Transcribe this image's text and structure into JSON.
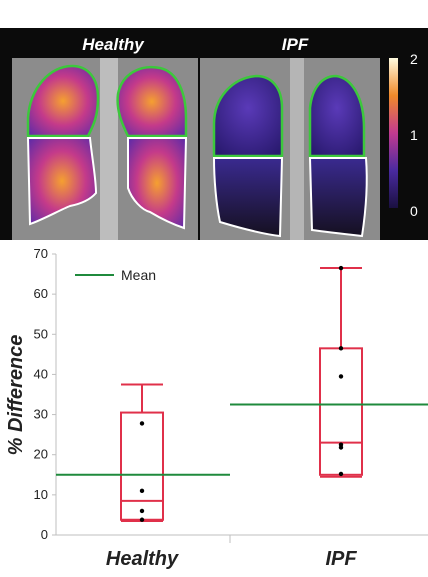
{
  "imaging": {
    "panels": [
      {
        "title": "Healthy"
      },
      {
        "title": "IPF"
      }
    ],
    "colorbar": {
      "ticks": [
        "2",
        "1",
        "0"
      ]
    }
  },
  "colors": {
    "lung_outline_upper": "#3cc83c",
    "lung_outline_lower": "#ffffff",
    "box_color": "#e0304a",
    "mean_color": "#1f8a3c",
    "point_color": "#000000"
  },
  "chart_data": {
    "type": "box",
    "ylabel": "% Difference",
    "xlabel": "",
    "ylim": [
      0,
      70
    ],
    "yticks": [
      0,
      10,
      20,
      30,
      40,
      50,
      60,
      70
    ],
    "categories": [
      "Healthy",
      "IPF"
    ],
    "legend": {
      "label": "Mean",
      "position": "top-left"
    },
    "boxes": [
      {
        "category": "Healthy",
        "whisker_low": 3.5,
        "q1": 3.8,
        "median": 8.5,
        "q3": 30.5,
        "whisker_high": 37.5,
        "points": [
          27.8,
          11,
          6,
          3.8
        ],
        "mean": 15
      },
      {
        "category": "IPF",
        "whisker_low": 14.5,
        "q1": 15,
        "median": 23,
        "q3": 46.5,
        "whisker_high": 66.5,
        "points": [
          66.5,
          46.5,
          39.5,
          22.5,
          21.8,
          15.2
        ],
        "mean": 32.5
      }
    ]
  }
}
